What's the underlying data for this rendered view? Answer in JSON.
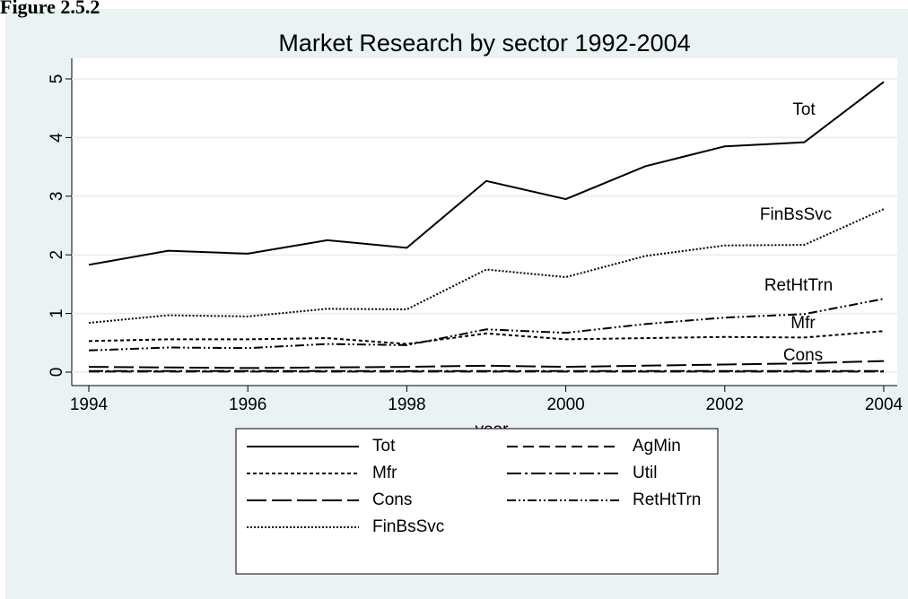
{
  "figure_label": "Figure 2.5.2",
  "chart_data": {
    "type": "line",
    "title": "Market Research by sector 1992-2004",
    "x_label": "year",
    "x": [
      1994,
      1995,
      1996,
      1997,
      1998,
      1999,
      2000,
      2001,
      2002,
      2003,
      2004
    ],
    "xlim": [
      1994,
      2004
    ],
    "xticks": [
      1994,
      1996,
      1998,
      2000,
      2002,
      2004
    ],
    "ylim": [
      0,
      5
    ],
    "yticks": [
      0,
      1,
      2,
      3,
      4,
      5
    ],
    "grid": true,
    "series": [
      {
        "name": "Tot",
        "color": "#000000",
        "dash": "none",
        "values": [
          1.83,
          2.07,
          2.02,
          2.25,
          2.12,
          3.26,
          2.95,
          3.51,
          3.85,
          3.92,
          4.95
        ]
      },
      {
        "name": "AgMin",
        "color": "#000000",
        "dash": "12,6",
        "values": [
          0.01,
          0.01,
          0.01,
          0.01,
          0.01,
          0.01,
          0.01,
          0.01,
          0.01,
          0.01,
          0.01
        ]
      },
      {
        "name": "Mfr",
        "color": "#000000",
        "dash": "4,3",
        "values": [
          0.53,
          0.56,
          0.56,
          0.58,
          0.48,
          0.66,
          0.56,
          0.58,
          0.6,
          0.59,
          0.7
        ]
      },
      {
        "name": "Util",
        "color": "#000000",
        "dash": "16,4,3,4",
        "values": [
          0.02,
          0.02,
          0.02,
          0.02,
          0.02,
          0.02,
          0.02,
          0.02,
          0.02,
          0.02,
          0.02
        ]
      },
      {
        "name": "Cons",
        "color": "#000000",
        "dash": "22,6",
        "values": [
          0.09,
          0.08,
          0.07,
          0.08,
          0.09,
          0.11,
          0.09,
          0.11,
          0.13,
          0.15,
          0.19
        ]
      },
      {
        "name": "RetHtTrn",
        "color": "#000000",
        "dash": "10,3,2,3,2,3",
        "values": [
          0.37,
          0.42,
          0.41,
          0.48,
          0.46,
          0.73,
          0.67,
          0.82,
          0.93,
          0.99,
          1.25
        ]
      },
      {
        "name": "FinBsSvc",
        "color": "#000000",
        "dash": "2,2",
        "values": [
          0.84,
          0.97,
          0.95,
          1.08,
          1.07,
          1.75,
          1.62,
          1.98,
          2.16,
          2.17,
          2.78
        ]
      }
    ],
    "annotations": [
      "Tot",
      "FinBsSvc",
      "RetHtTrn",
      "Mfr",
      "Cons"
    ]
  }
}
